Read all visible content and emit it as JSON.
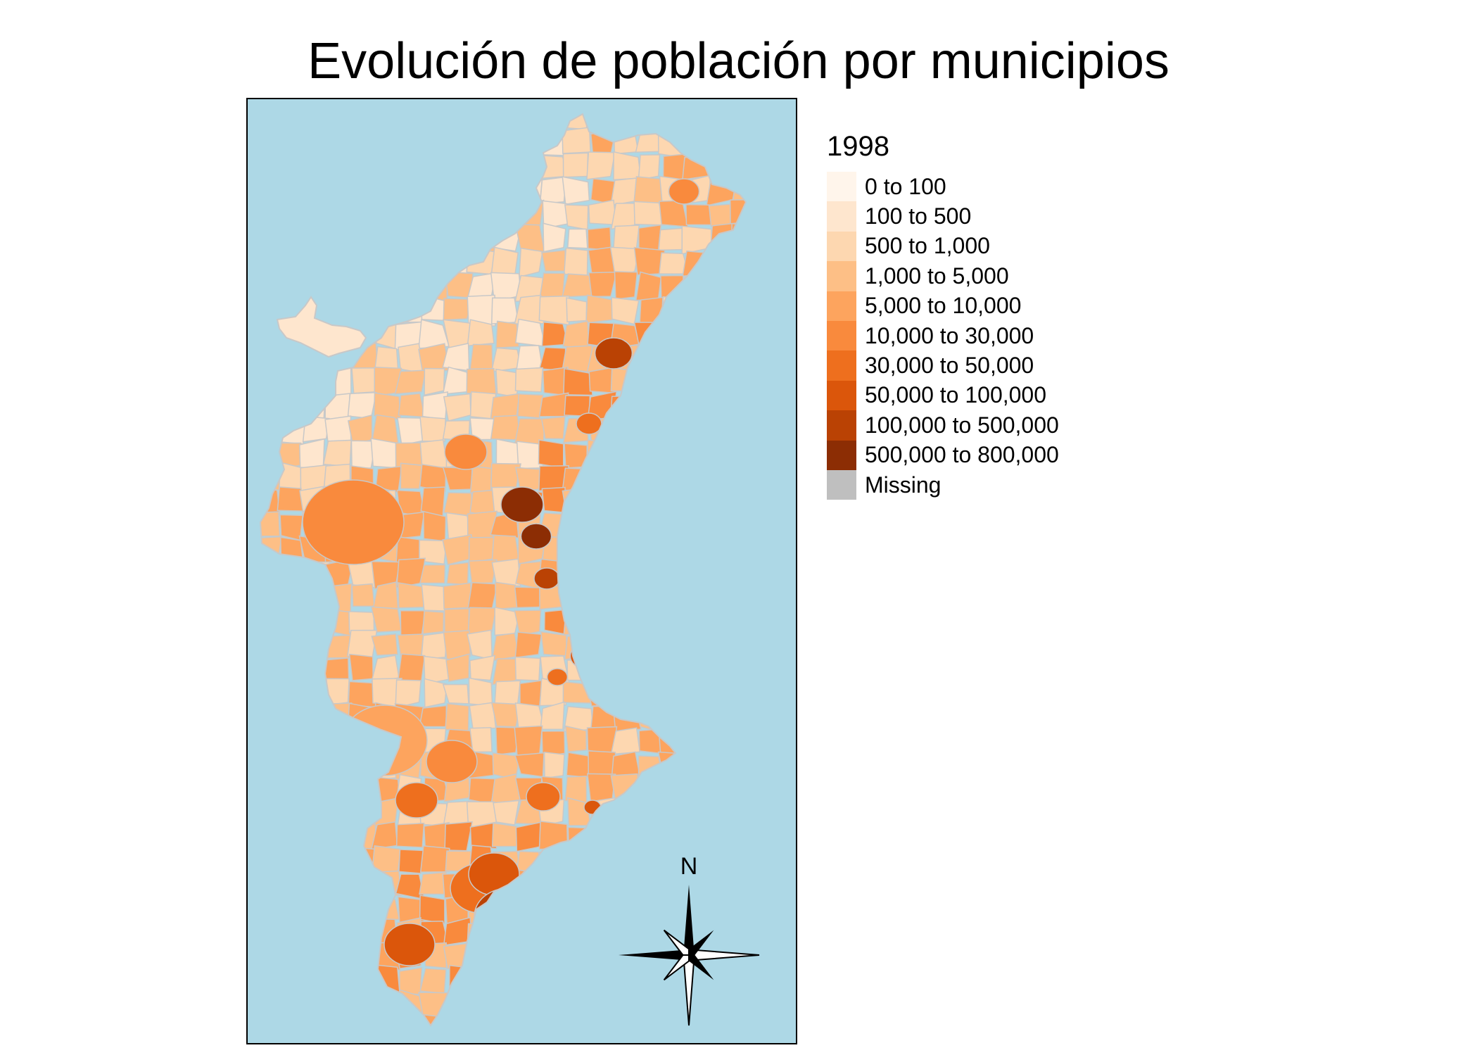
{
  "title": "Evolución de población por municipios",
  "legend": {
    "title": "1998",
    "items": [
      {
        "label": "0 to 100",
        "color": "#fff5eb"
      },
      {
        "label": "100 to 500",
        "color": "#fee6ce"
      },
      {
        "label": "500 to 1,000",
        "color": "#fdd7b0"
      },
      {
        "label": "1,000 to 5,000",
        "color": "#fdbf86"
      },
      {
        "label": "5,000 to 10,000",
        "color": "#fda45e"
      },
      {
        "label": "10,000 to 30,000",
        "color": "#f98a3d"
      },
      {
        "label": "30,000 to 50,000",
        "color": "#ee6f1e"
      },
      {
        "label": "50,000 to 100,000",
        "color": "#db560b"
      },
      {
        "label": "100,000 to 500,000",
        "color": "#ba4204"
      },
      {
        "label": "500,000 to 800,000",
        "color": "#8c2d04"
      },
      {
        "label": "Missing",
        "color": "#bfbfbf"
      }
    ]
  },
  "map": {
    "sea_color": "#add8e6",
    "border_color": "#c8c8c8",
    "compass_label": "N"
  }
}
